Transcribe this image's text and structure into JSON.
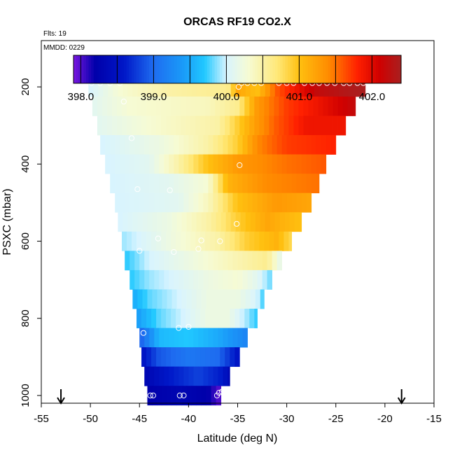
{
  "chart_data": {
    "type": "heatmap",
    "title": "ORCAS RF19 CO2.X",
    "flights_label": "Flts: 19",
    "date_label": "MMDD: 0229",
    "xlabel": "Latitude (deg N)",
    "ylabel": "PSXC (mbar)",
    "xlim": [
      -55,
      -15
    ],
    "ylim": [
      1020,
      80
    ],
    "x_ticks": [
      "-55",
      "-50",
      "-45",
      "-40",
      "-35",
      "-30",
      "-25",
      "-20",
      "-15"
    ],
    "y_ticks": [
      "200",
      "400",
      "600",
      "800",
      "1000"
    ],
    "colorbar": {
      "min": 397.9,
      "max": 402.4,
      "tick_values": [
        398.0,
        399.0,
        400.0,
        401.0,
        402.0
      ],
      "tick_labels": [
        "398.0",
        "399.0",
        "400.0",
        "401.0",
        "402.0"
      ],
      "stops": [
        {
          "v": 397.9,
          "c": "#7a16e0"
        },
        {
          "v": 398.2,
          "c": "#0000aa"
        },
        {
          "v": 398.6,
          "c": "#0018c8"
        },
        {
          "v": 399.0,
          "c": "#1e6cf0"
        },
        {
          "v": 399.4,
          "c": "#1a9af8"
        },
        {
          "v": 399.7,
          "c": "#20c8ff"
        },
        {
          "v": 400.0,
          "c": "#d8f4ff"
        },
        {
          "v": 400.3,
          "c": "#f6fbd4"
        },
        {
          "v": 400.7,
          "c": "#ffe878"
        },
        {
          "v": 401.0,
          "c": "#ffc010"
        },
        {
          "v": 401.4,
          "c": "#ff8c00"
        },
        {
          "v": 401.8,
          "c": "#ff2000"
        },
        {
          "v": 402.1,
          "c": "#d00000"
        },
        {
          "v": 402.4,
          "c": "#a82020"
        }
      ]
    },
    "flight_track_markers_lat": [
      -53.0,
      -18.3
    ],
    "pressure_levels": [
      {
        "p": 200,
        "lat_min": -50.2,
        "lat_max": -22.0,
        "knots": [
          [
            -50.2,
            400.0
          ],
          [
            -47,
            400.3
          ],
          [
            -42,
            400.5
          ],
          [
            -36,
            400.6
          ],
          [
            -35,
            401.2
          ],
          [
            -33,
            401.0
          ],
          [
            -31,
            401.6
          ],
          [
            -27,
            402.2
          ],
          [
            -22,
            402.4
          ]
        ]
      },
      {
        "p": 250,
        "lat_min": -49.8,
        "lat_max": -23.0,
        "knots": [
          [
            -49.8,
            400.1
          ],
          [
            -46,
            400.3
          ],
          [
            -38,
            400.4
          ],
          [
            -35,
            400.6
          ],
          [
            -33,
            401.3
          ],
          [
            -30,
            401.7
          ],
          [
            -27,
            401.9
          ],
          [
            -23,
            402.2
          ]
        ]
      },
      {
        "p": 300,
        "lat_min": -49.3,
        "lat_max": -24.0,
        "knots": [
          [
            -49.3,
            400.1
          ],
          [
            -44,
            400.3
          ],
          [
            -37,
            400.5
          ],
          [
            -33,
            401.3
          ],
          [
            -31,
            401.6
          ],
          [
            -28,
            401.9
          ],
          [
            -24,
            401.9
          ]
        ]
      },
      {
        "p": 350,
        "lat_min": -49.0,
        "lat_max": -25.0,
        "knots": [
          [
            -49.0,
            400.0
          ],
          [
            -43,
            400.2
          ],
          [
            -38,
            400.5
          ],
          [
            -35,
            400.9
          ],
          [
            -33,
            401.4
          ],
          [
            -30,
            401.7
          ],
          [
            -25,
            401.8
          ]
        ]
      },
      {
        "p": 400,
        "lat_min": -48.5,
        "lat_max": -26.0,
        "knots": [
          [
            -48.5,
            400.0
          ],
          [
            -44,
            400.1
          ],
          [
            -41,
            400.5
          ],
          [
            -38,
            401.0
          ],
          [
            -35,
            401.3
          ],
          [
            -30,
            401.5
          ],
          [
            -26,
            401.6
          ]
        ]
      },
      {
        "p": 450,
        "lat_min": -48.0,
        "lat_max": -26.7,
        "knots": [
          [
            -48.0,
            400.0
          ],
          [
            -42,
            400.1
          ],
          [
            -38,
            400.3
          ],
          [
            -36,
            401.1
          ],
          [
            -32,
            401.4
          ],
          [
            -26.7,
            401.5
          ]
        ]
      },
      {
        "p": 500,
        "lat_min": -47.5,
        "lat_max": -27.5,
        "knots": [
          [
            -47.5,
            400.0
          ],
          [
            -41,
            400.1
          ],
          [
            -38,
            400.4
          ],
          [
            -35,
            401.0
          ],
          [
            -31,
            401.3
          ],
          [
            -27.5,
            401.2
          ]
        ]
      },
      {
        "p": 550,
        "lat_min": -47.2,
        "lat_max": -28.5,
        "knots": [
          [
            -47.2,
            400.0
          ],
          [
            -42,
            400.2
          ],
          [
            -38,
            400.5
          ],
          [
            -35,
            400.9
          ],
          [
            -32,
            401.2
          ],
          [
            -28.5,
            401.0
          ]
        ]
      },
      {
        "p": 600,
        "lat_min": -46.8,
        "lat_max": -29.5,
        "knots": [
          [
            -46.8,
            399.9
          ],
          [
            -42,
            400.2
          ],
          [
            -37,
            400.5
          ],
          [
            -34,
            400.9
          ],
          [
            -31,
            401.1
          ],
          [
            -29.5,
            400.8
          ]
        ]
      },
      {
        "p": 650,
        "lat_min": -46.5,
        "lat_max": -30.5,
        "knots": [
          [
            -46.5,
            399.7
          ],
          [
            -44,
            400.0
          ],
          [
            -38,
            400.3
          ],
          [
            -34,
            400.5
          ],
          [
            -32,
            400.6
          ],
          [
            -30.5,
            400.1
          ]
        ]
      },
      {
        "p": 700,
        "lat_min": -46.0,
        "lat_max": -31.5,
        "knots": [
          [
            -46.0,
            399.7
          ],
          [
            -44,
            399.9
          ],
          [
            -38,
            400.2
          ],
          [
            -35,
            400.3
          ],
          [
            -33,
            400.1
          ],
          [
            -31.5,
            399.8
          ]
        ]
      },
      {
        "p": 750,
        "lat_min": -45.7,
        "lat_max": -32.3,
        "knots": [
          [
            -45.7,
            399.5
          ],
          [
            -44,
            399.8
          ],
          [
            -38,
            400.2
          ],
          [
            -35,
            400.2
          ],
          [
            -33,
            400.0
          ],
          [
            -32.3,
            399.7
          ]
        ]
      },
      {
        "p": 800,
        "lat_min": -45.3,
        "lat_max": -33.0,
        "knots": [
          [
            -45.3,
            399.4
          ],
          [
            -43,
            399.8
          ],
          [
            -38,
            400.2
          ],
          [
            -36,
            400.2
          ],
          [
            -34,
            399.9
          ],
          [
            -33,
            399.7
          ]
        ]
      },
      {
        "p": 850,
        "lat_min": -45.0,
        "lat_max": -34.0,
        "knots": [
          [
            -45.0,
            398.9
          ],
          [
            -43,
            399.6
          ],
          [
            -40,
            399.7
          ],
          [
            -37,
            399.5
          ],
          [
            -34,
            399.2
          ]
        ]
      },
      {
        "p": 900,
        "lat_min": -44.8,
        "lat_max": -34.8,
        "knots": [
          [
            -44.8,
            398.5
          ],
          [
            -43,
            398.9
          ],
          [
            -40,
            399.1
          ],
          [
            -37,
            399.0
          ],
          [
            -34.8,
            398.5
          ]
        ]
      },
      {
        "p": 950,
        "lat_min": -44.5,
        "lat_max": -35.8,
        "knots": [
          [
            -44.5,
            398.3
          ],
          [
            -42,
            398.6
          ],
          [
            -39,
            398.8
          ],
          [
            -36.5,
            398.6
          ],
          [
            -35.8,
            398.3
          ]
        ]
      },
      {
        "p": 1000,
        "lat_min": -44.2,
        "lat_max": -36.7,
        "knots": [
          [
            -44.2,
            398.2
          ],
          [
            -41,
            398.3
          ],
          [
            -38,
            398.2
          ],
          [
            -36.9,
            398.0
          ],
          [
            -36.7,
            397.9
          ]
        ]
      }
    ],
    "sample_points": [
      {
        "lat": -49.9,
        "p": 190
      },
      {
        "lat": -49.0,
        "p": 190
      },
      {
        "lat": -48.0,
        "p": 190
      },
      {
        "lat": -47.0,
        "p": 190
      },
      {
        "lat": -34.6,
        "p": 190
      },
      {
        "lat": -34.0,
        "p": 190
      },
      {
        "lat": -33.3,
        "p": 190
      },
      {
        "lat": -32.6,
        "p": 190
      },
      {
        "lat": -30.8,
        "p": 190
      },
      {
        "lat": -30.0,
        "p": 190
      },
      {
        "lat": -29.3,
        "p": 190
      },
      {
        "lat": -28.2,
        "p": 190
      },
      {
        "lat": -27.4,
        "p": 190
      },
      {
        "lat": -26.7,
        "p": 190
      },
      {
        "lat": -25.9,
        "p": 190
      },
      {
        "lat": -25.1,
        "p": 190
      },
      {
        "lat": -24.2,
        "p": 190
      },
      {
        "lat": -23.6,
        "p": 190
      },
      {
        "lat": -22.8,
        "p": 190
      },
      {
        "lat": -22.2,
        "p": 190
      },
      {
        "lat": -34.9,
        "p": 200
      },
      {
        "lat": -46.6,
        "p": 238
      },
      {
        "lat": -45.8,
        "p": 333
      },
      {
        "lat": -34.8,
        "p": 403
      },
      {
        "lat": -45.2,
        "p": 465
      },
      {
        "lat": -41.9,
        "p": 468
      },
      {
        "lat": -35.1,
        "p": 555
      },
      {
        "lat": -43.1,
        "p": 593
      },
      {
        "lat": -38.7,
        "p": 598
      },
      {
        "lat": -36.8,
        "p": 600
      },
      {
        "lat": -45.0,
        "p": 625
      },
      {
        "lat": -41.5,
        "p": 628
      },
      {
        "lat": -39.0,
        "p": 620
      },
      {
        "lat": -41.0,
        "p": 825
      },
      {
        "lat": -40.0,
        "p": 822
      },
      {
        "lat": -44.6,
        "p": 838
      },
      {
        "lat": -43.9,
        "p": 1000
      },
      {
        "lat": -43.6,
        "p": 1000
      },
      {
        "lat": -40.9,
        "p": 1000
      },
      {
        "lat": -40.5,
        "p": 1000
      },
      {
        "lat": -37.1,
        "p": 1000
      },
      {
        "lat": -36.9,
        "p": 993
      },
      {
        "lat": -36.6,
        "p": 990
      }
    ]
  }
}
